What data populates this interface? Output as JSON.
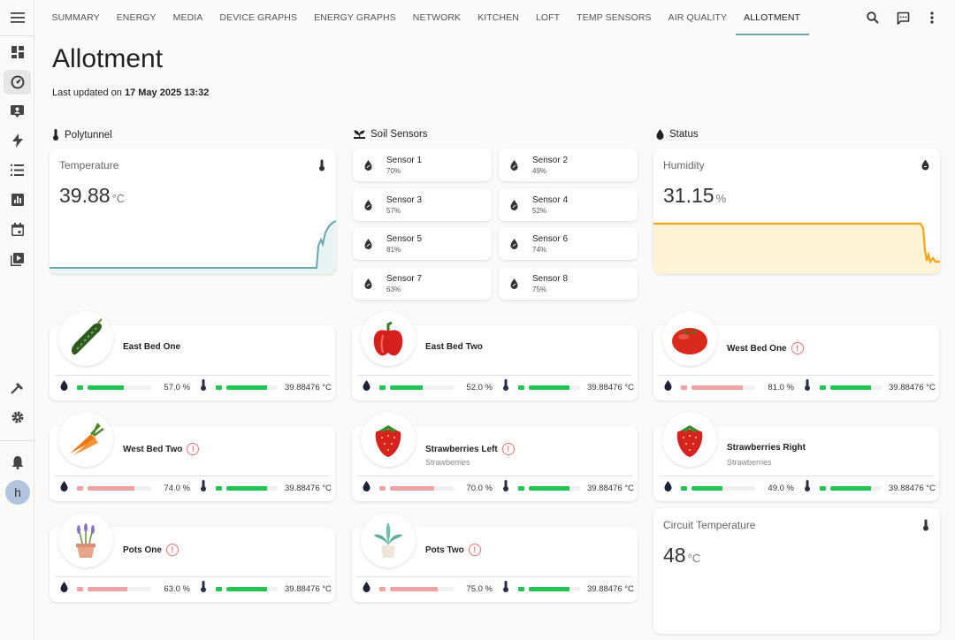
{
  "colors": {
    "accent": "#6da7a0",
    "good": "#23c552",
    "warn": "#f0a3a3",
    "humidity_line": "#f2a516",
    "humidity_fill": "#fff3d6",
    "temp_line": "#6aa7ad",
    "temp_fill": "#e8f3f4"
  },
  "sidebar": {
    "items": [
      {
        "icon": "menu-icon"
      },
      {
        "icon": "dashboard-icon"
      },
      {
        "icon": "energy-gauge-icon"
      },
      {
        "icon": "person-card-icon"
      },
      {
        "icon": "lightning-icon"
      },
      {
        "icon": "list-icon"
      },
      {
        "icon": "chart-icon"
      },
      {
        "icon": "calendar-icon"
      },
      {
        "icon": "media-icon"
      },
      {
        "icon": "hammer-icon"
      },
      {
        "icon": "gear-icon"
      },
      {
        "icon": "bell-icon"
      }
    ],
    "avatar_initial": "h"
  },
  "tabs": [
    "SUMMARY",
    "ENERGY",
    "MEDIA",
    "DEVICE GRAPHS",
    "ENERGY GRAPHS",
    "NETWORK",
    "KITCHEN",
    "LOFT",
    "TEMP SENSORS",
    "AIR QUALITY",
    "ALLOTMENT"
  ],
  "active_tab": "ALLOTMENT",
  "page": {
    "title": "Allotment",
    "updated_prefix": "Last updated on ",
    "updated_value": "17 May 2025 13:32"
  },
  "sections": {
    "polytunnel": "Polytunnel",
    "soil": "Soil Sensors",
    "status": "Status"
  },
  "temperature": {
    "label": "Temperature",
    "value": "39.88",
    "unit": "°C"
  },
  "humidity": {
    "label": "Humidity",
    "value": "31.15",
    "unit": "%"
  },
  "circuit": {
    "label": "Circuit Temperature",
    "value": "48",
    "unit": "°C"
  },
  "sensors": [
    {
      "name": "Sensor 1",
      "value": "70%"
    },
    {
      "name": "Sensor 2",
      "value": "49%"
    },
    {
      "name": "Sensor 3",
      "value": "57%"
    },
    {
      "name": "Sensor 4",
      "value": "52%"
    },
    {
      "name": "Sensor 5",
      "value": "81%"
    },
    {
      "name": "Sensor 6",
      "value": "74%"
    },
    {
      "name": "Sensor 7",
      "value": "63%"
    },
    {
      "name": "Sensor 8",
      "value": "75%"
    }
  ],
  "plants": [
    {
      "name": "East Bed One",
      "sub": "",
      "warn": false,
      "image": "cucumber",
      "moisture": "57.0 %",
      "moisture_frac": 0.57,
      "moisture_ok": true,
      "temp": "39.88476 °C",
      "temp_frac": 0.8
    },
    {
      "name": "East Bed Two",
      "sub": "",
      "warn": false,
      "image": "pepper",
      "moisture": "52.0 %",
      "moisture_frac": 0.52,
      "moisture_ok": true,
      "temp": "39.88476 °C",
      "temp_frac": 0.8
    },
    {
      "name": "West Bed One",
      "sub": "",
      "warn": true,
      "image": "tomato",
      "moisture": "81.0 %",
      "moisture_frac": 0.81,
      "moisture_ok": false,
      "temp": "39.88476 °C",
      "temp_frac": 0.8
    },
    {
      "name": "West Bed Two",
      "sub": "",
      "warn": true,
      "image": "carrot",
      "moisture": "74.0 %",
      "moisture_frac": 0.74,
      "moisture_ok": false,
      "temp": "39.88476 °C",
      "temp_frac": 0.8
    },
    {
      "name": "Strawberries Left",
      "sub": "Strawberries",
      "warn": true,
      "image": "strawberry",
      "moisture": "70.0 %",
      "moisture_frac": 0.7,
      "moisture_ok": false,
      "temp": "39.88476 °C",
      "temp_frac": 0.8
    },
    {
      "name": "Strawberries Right",
      "sub": "Strawberries",
      "warn": false,
      "image": "strawberry",
      "moisture": "49.0 %",
      "moisture_frac": 0.49,
      "moisture_ok": true,
      "temp": "39.88476 °C",
      "temp_frac": 0.8
    },
    {
      "name": "Pots One",
      "sub": "",
      "warn": true,
      "image": "lavender-pot",
      "moisture": "63.0 %",
      "moisture_frac": 0.63,
      "moisture_ok": false,
      "temp": "39.88476 °C",
      "temp_frac": 0.8
    },
    {
      "name": "Pots Two",
      "sub": "",
      "warn": true,
      "image": "plant-pot",
      "moisture": "75.0 %",
      "moisture_frac": 0.75,
      "moisture_ok": false,
      "temp": "39.88476 °C",
      "temp_frac": 0.8
    }
  ]
}
